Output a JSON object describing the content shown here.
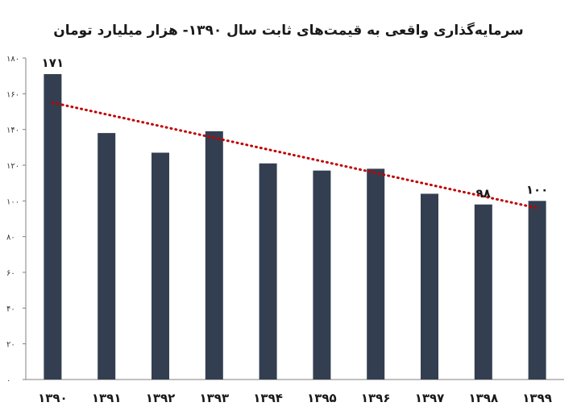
{
  "chart_data": {
    "type": "bar",
    "title": "سرمایه‌گذاری واقعی به قیمت‌های ثابت سال ۱۳۹۰- هزار میلیارد تومان",
    "xlabel": "",
    "ylabel": "",
    "categories": [
      "۱۳۹۰",
      "۱۳۹۱",
      "۱۳۹۲",
      "۱۳۹۳",
      "۱۳۹۴",
      "۱۳۹۵",
      "۱۳۹۶",
      "۱۳۹۷",
      "۱۳۹۸",
      "۱۳۹۹"
    ],
    "values": [
      171,
      138,
      127,
      139,
      121,
      117,
      118,
      104,
      98,
      100
    ],
    "data_labels": [
      {
        "index": 0,
        "text": "۱۷۱"
      },
      {
        "index": 8,
        "text": "۹۸"
      },
      {
        "index": 9,
        "text": "۱۰۰"
      }
    ],
    "ylim": [
      0,
      180
    ],
    "yticks": [
      0,
      20,
      40,
      60,
      80,
      100,
      120,
      140,
      160,
      180
    ],
    "ytick_labels": [
      "۰",
      "۲۰",
      "۴۰",
      "۶۰",
      "۸۰",
      "۱۰۰",
      "۱۲۰",
      "۱۴۰",
      "۱۶۰",
      "۱۸۰"
    ],
    "trendline": {
      "type": "linear",
      "style": "dotted",
      "start": 155,
      "end": 96
    },
    "grid": false,
    "colors": {
      "bar": "#333f50",
      "trendline": "#c00000",
      "axis": "#808080"
    }
  }
}
